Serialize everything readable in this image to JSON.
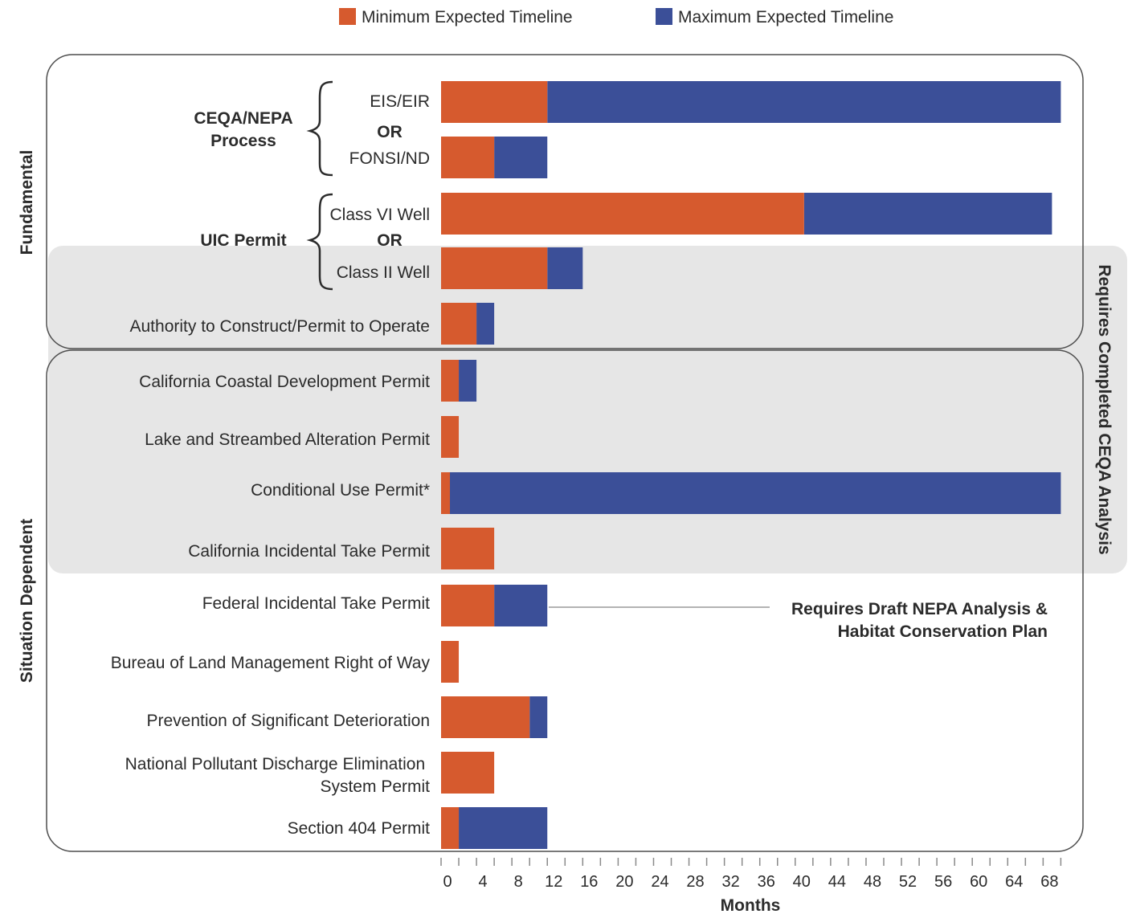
{
  "chart_data": {
    "type": "bar",
    "stacked": true,
    "orientation": "horizontal",
    "legend": {
      "position": "top",
      "entries": [
        {
          "name": "Minimum Expected Timeline",
          "color": "#d65a2e"
        },
        {
          "name": "Maximum Expected Timeline",
          "color": "#3b4f98"
        }
      ]
    },
    "xlabel": "Months",
    "xlim": [
      0,
      70
    ],
    "xticks": [
      0,
      4,
      8,
      12,
      16,
      20,
      24,
      28,
      32,
      36,
      40,
      44,
      48,
      52,
      56,
      60,
      64,
      68
    ],
    "categories": [
      {
        "label": "EIS/EIR",
        "min": 12,
        "max": 70
      },
      {
        "label": "FONSI/ND",
        "min": 6,
        "max": 12
      },
      {
        "label": "Class VI Well",
        "min": 41,
        "max": 69
      },
      {
        "label": "Class II Well",
        "min": 12,
        "max": 16
      },
      {
        "label": "Authority to Construct/Permit to Operate",
        "min": 4,
        "max": 6
      },
      {
        "label": "California Coastal Development Permit",
        "min": 2,
        "max": 4
      },
      {
        "label": "Lake and Streambed Alteration Permit",
        "min": 2,
        "max": 2
      },
      {
        "label": "Conditional Use Permit*",
        "min": 1,
        "max": 70
      },
      {
        "label": "California Incidental Take Permit",
        "min": 6,
        "max": 6
      },
      {
        "label": "Federal Incidental Take Permit",
        "min": 6,
        "max": 12
      },
      {
        "label": "Bureau of Land Management Right of Way",
        "min": 2,
        "max": 2
      },
      {
        "label": "Prevention of Significant Deterioration",
        "min": 10,
        "max": 12
      },
      {
        "label": "National Pollutant Discharge Elimination System Permit",
        "min": 6,
        "max": 6
      },
      {
        "label": "Section 404 Permit",
        "min": 2,
        "max": 12
      }
    ],
    "groups": [
      {
        "label": "Fundamental"
      },
      {
        "label": "Situation Dependent"
      }
    ],
    "group_labels": {
      "ceqa_line1": "CEQA/NEPA",
      "ceqa_line2": "Process",
      "uic": "UIC Permit",
      "or": "OR"
    },
    "annotations": {
      "ceqa_region": "Requires Completed CEQA Analysis",
      "nepa_line1": "Requires Draft NEPA Analysis &",
      "nepa_line2": "Habitat Conservation Plan"
    }
  }
}
